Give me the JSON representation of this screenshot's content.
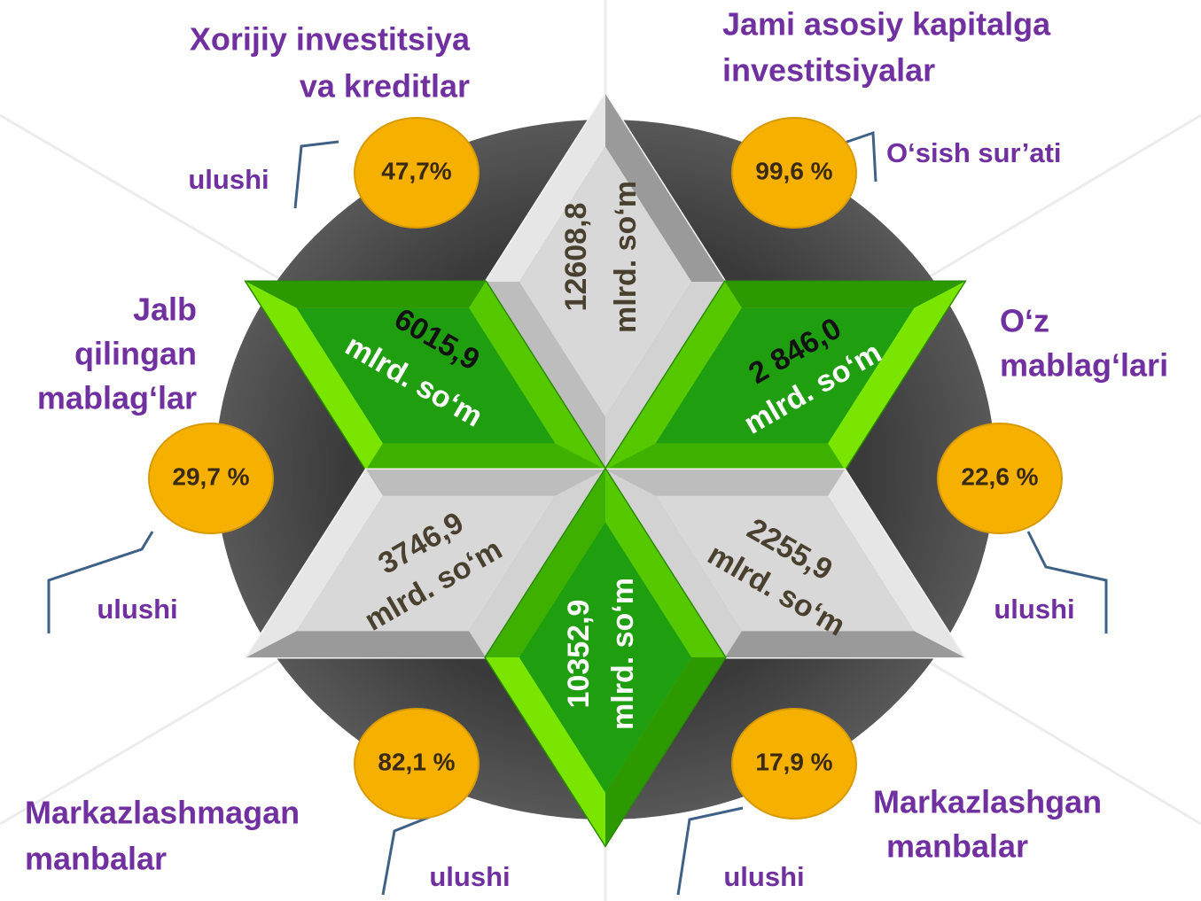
{
  "titles": [
    {
      "lines": [
        "Xorijiy investitsiya",
        "va kreditlar"
      ]
    },
    {
      "lines": [
        "Jami asosiy kapitalga",
        "investitsiyalar"
      ]
    },
    {
      "lines": [
        "Jalb",
        "qilingan",
        "mablag‘lar"
      ]
    },
    {
      "lines": [
        "O‘z",
        "mablag‘lari"
      ]
    },
    {
      "lines": [
        "Markazlashmagan",
        "manbalar"
      ]
    },
    {
      "lines": [
        "Markazlashgan",
        "manbalar"
      ]
    }
  ],
  "diamonds": [
    {
      "value": "12608,8",
      "unit": "mlrd. so‘m"
    },
    {
      "value": "6015,9",
      "unit": "mlrd. so‘m"
    },
    {
      "value": "2 846,0",
      "unit": "mlrd. so‘m"
    },
    {
      "value": "3746,9",
      "unit": "mlrd. so‘m"
    },
    {
      "value": "2255,9",
      "unit": "mlrd. so‘m"
    },
    {
      "value": "10352,9",
      "unit": "mlrd. so‘m"
    }
  ],
  "badges": [
    {
      "percent": "47,7%",
      "caption": "ulushi"
    },
    {
      "percent": "99,6 %",
      "caption": "O‘sish sur’ati"
    },
    {
      "percent": "29,7 %",
      "caption": "ulushi"
    },
    {
      "percent": "22,6 %",
      "caption": "ulushi"
    },
    {
      "percent": "82,1 %",
      "caption": "ulushi"
    },
    {
      "percent": "17,9 %",
      "caption": "ulushi"
    }
  ]
}
